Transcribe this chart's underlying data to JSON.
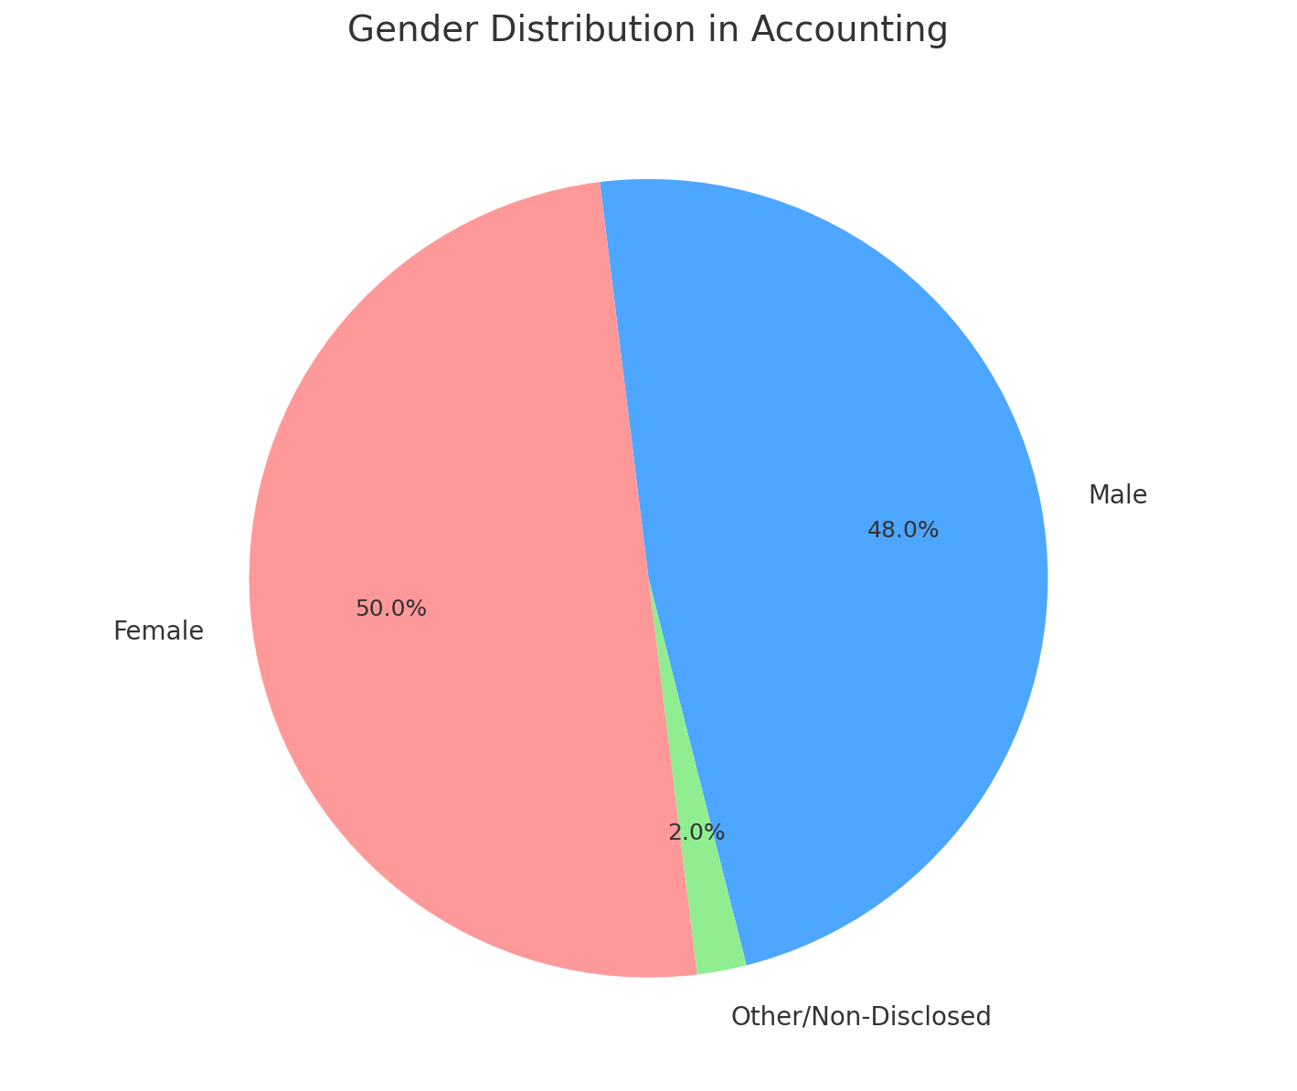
{
  "title": "Gender Distribution in Accounting",
  "title_fontsize": 28,
  "labels": [
    "Male",
    "Other/Non-Disclosed",
    "Female"
  ],
  "values": [
    48.0,
    2.0,
    50.0
  ],
  "colors": [
    "#4DA6FF",
    "#90EE90",
    "#FF9999"
  ],
  "autopct_fontsize": 18,
  "label_fontsize": 20,
  "startangle": 97,
  "background_color": "#FFFFFF"
}
